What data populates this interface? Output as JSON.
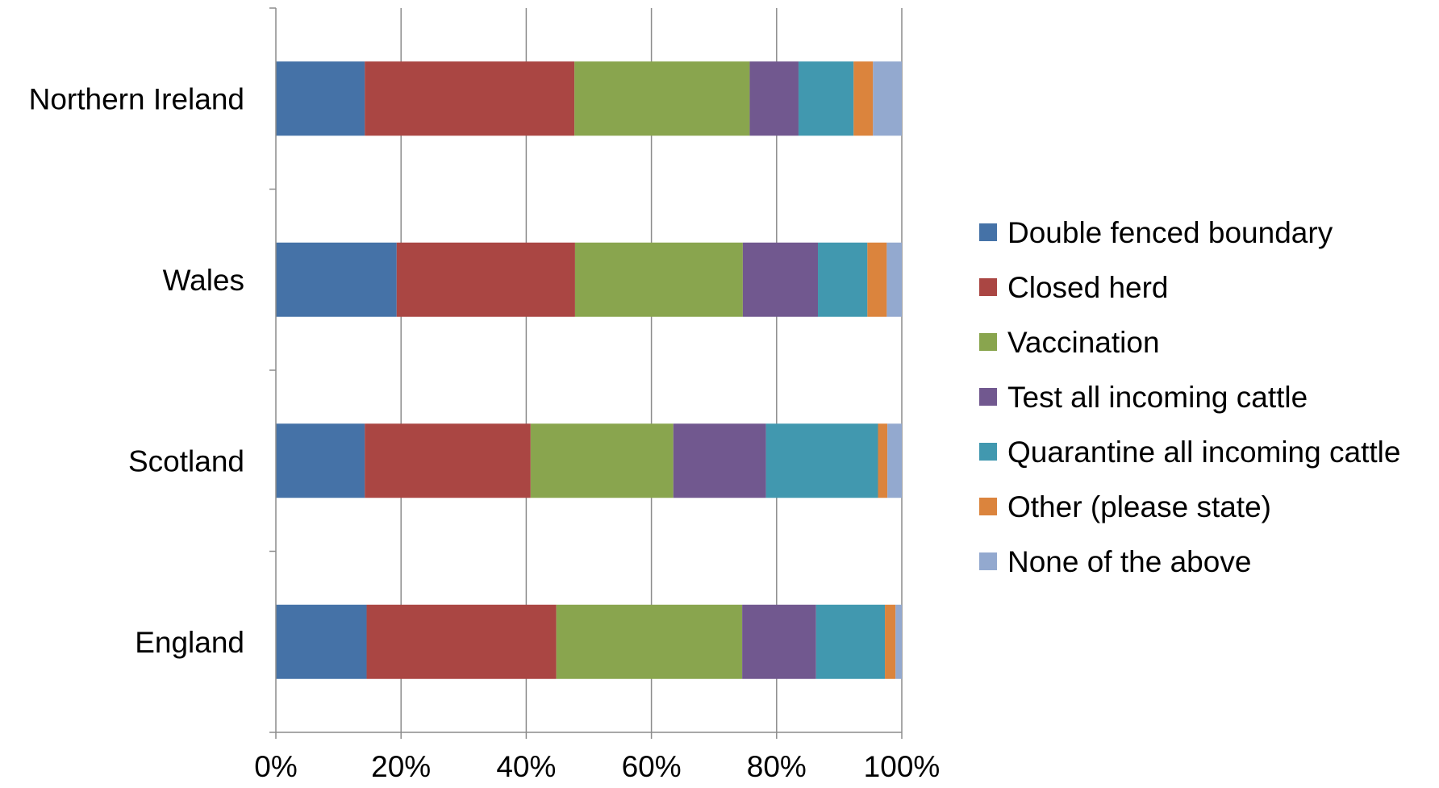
{
  "chart_data": {
    "type": "bar",
    "orientation": "horizontal",
    "stacked": "percent",
    "title": "",
    "xlabel": "",
    "ylabel": "",
    "xlim": [
      0,
      100
    ],
    "x_ticks": [
      "0%",
      "20%",
      "40%",
      "60%",
      "80%",
      "100%"
    ],
    "grid": "vertical",
    "legend_position": "right",
    "categories": [
      "Northern Ireland",
      "Wales",
      "Scotland",
      "England"
    ],
    "series": [
      {
        "name": "Double fenced boundary",
        "color": "#4572A7",
        "values": [
          14.2,
          19.3,
          14.2,
          14.5
        ]
      },
      {
        "name": "Closed herd",
        "color": "#AA4643",
        "values": [
          33.5,
          28.5,
          26.5,
          30.3
        ]
      },
      {
        "name": "Vaccination",
        "color": "#89A54E",
        "values": [
          28.0,
          26.8,
          22.8,
          29.7
        ]
      },
      {
        "name": "Test all incoming cattle",
        "color": "#71588F",
        "values": [
          7.8,
          12.0,
          14.8,
          11.8
        ]
      },
      {
        "name": "Quarantine all incoming cattle",
        "color": "#4198AF",
        "values": [
          8.8,
          7.9,
          17.9,
          11.0
        ]
      },
      {
        "name": "Other (please state)",
        "color": "#DB843D",
        "values": [
          3.1,
          3.1,
          1.5,
          1.7
        ]
      },
      {
        "name": "None of the above",
        "color": "#93A9CF",
        "values": [
          4.6,
          2.4,
          2.3,
          1.0
        ]
      }
    ]
  }
}
